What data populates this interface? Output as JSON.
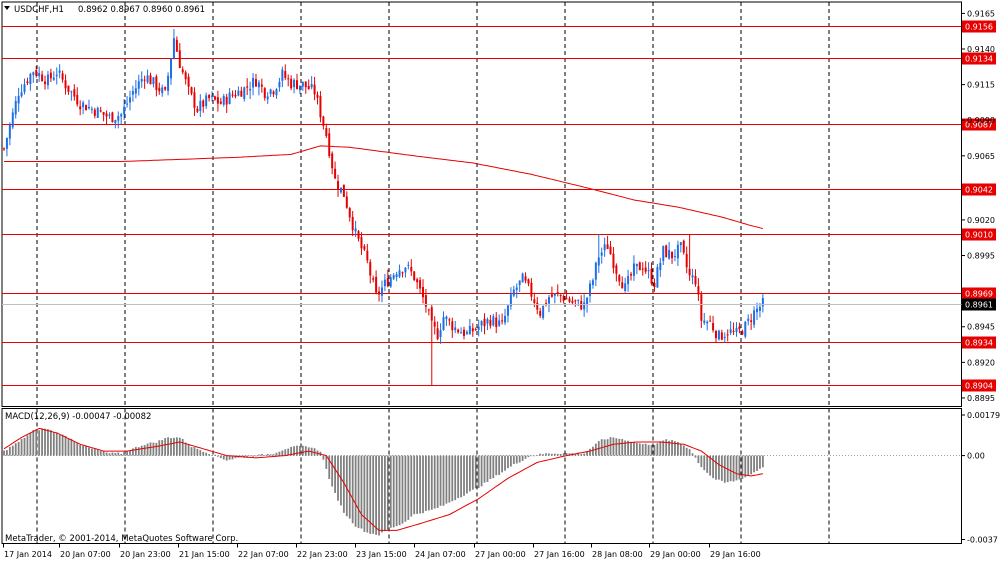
{
  "window": {
    "title": "USDCHF,H1",
    "ohlc": "0.8962 0.8967 0.8960 0.8961",
    "menu_arrow_icon": "triangle-down-icon"
  },
  "colors": {
    "bull": "#1e6fe6",
    "bear": "#e60000",
    "level_line": "#e60000",
    "ma_line": "#e60000",
    "macd_hist": "#808080",
    "macd_signal": "#e60000",
    "grid": "#000000",
    "current_price_line": "#c0c0c0",
    "current_price_box": "#000000"
  },
  "copyright": "MetaTrader, © 2001-2014, MetaQuotes Software Corp.",
  "price_axis": {
    "ticks": [
      "0.9165",
      "0.9140",
      "0.9115",
      "0.9090",
      "0.9065",
      "0.9020",
      "0.8995",
      "0.8945",
      "0.8920",
      "0.8895"
    ]
  },
  "levels": [
    {
      "label": "0.9156",
      "value": 0.9156
    },
    {
      "label": "0.9134",
      "value": 0.9134
    },
    {
      "label": "0.9087",
      "value": 0.9087
    },
    {
      "label": "0.9042",
      "value": 0.9042
    },
    {
      "label": "0.9010",
      "value": 0.901
    },
    {
      "label": "0.8969",
      "value": 0.8969
    },
    {
      "label": "0.8934",
      "value": 0.8934
    },
    {
      "label": "0.8904",
      "value": 0.8904
    }
  ],
  "current_price": {
    "label": "0.8961",
    "value": 0.8961
  },
  "time_axis": {
    "labels": [
      "17 Jan 2014",
      "20 Jan 07:00",
      "20 Jan 23:00",
      "21 Jan 15:00",
      "22 Jan 07:00",
      "22 Jan 23:00",
      "23 Jan 15:00",
      "24 Jan 07:00",
      "27 Jan 00:00",
      "27 Jan 16:00",
      "28 Jan 08:00",
      "29 Jan 00:00",
      "29 Jan 16:00"
    ]
  },
  "macd": {
    "title": "MACD(12,26,9) -0.00047 -0.00082",
    "ticks": [
      "0.00179",
      "0.00",
      "-0.0037"
    ]
  },
  "chart_data": {
    "type": "candlestick",
    "symbol": "USDCHF",
    "timeframe": "H1",
    "ylim": [
      0.8889,
      0.9173
    ],
    "close_path": [
      [
        0,
        0.907
      ],
      [
        5,
        0.911
      ],
      [
        10,
        0.9125
      ],
      [
        15,
        0.9118
      ],
      [
        18,
        0.9124
      ],
      [
        22,
        0.9112
      ],
      [
        26,
        0.9102
      ],
      [
        30,
        0.9098
      ],
      [
        36,
        0.9092
      ],
      [
        40,
        0.9094
      ],
      [
        44,
        0.911
      ],
      [
        48,
        0.9122
      ],
      [
        52,
        0.9114
      ],
      [
        55,
        0.9108
      ],
      [
        58,
        0.9148
      ],
      [
        60,
        0.913
      ],
      [
        63,
        0.911
      ],
      [
        66,
        0.9098
      ],
      [
        70,
        0.9105
      ],
      [
        74,
        0.9102
      ],
      [
        78,
        0.9108
      ],
      [
        82,
        0.9112
      ],
      [
        86,
        0.9118
      ],
      [
        89,
        0.911
      ],
      [
        92,
        0.9112
      ],
      [
        95,
        0.9122
      ],
      [
        98,
        0.9116
      ],
      [
        102,
        0.9115
      ],
      [
        106,
        0.911
      ],
      [
        110,
        0.908
      ],
      [
        113,
        0.9048
      ],
      [
        116,
        0.9038
      ],
      [
        120,
        0.901
      ],
      [
        124,
        0.899
      ],
      [
        127,
        0.8966
      ],
      [
        130,
        0.8975
      ],
      [
        134,
        0.8985
      ],
      [
        137,
        0.8988
      ],
      [
        140,
        0.898
      ],
      [
        144,
        0.896
      ],
      [
        146,
        0.8945
      ],
      [
        148,
        0.894
      ],
      [
        150,
        0.8952
      ],
      [
        154,
        0.8944
      ],
      [
        158,
        0.894
      ],
      [
        162,
        0.8945
      ],
      [
        166,
        0.895
      ],
      [
        170,
        0.8946
      ],
      [
        174,
        0.897
      ],
      [
        177,
        0.8978
      ],
      [
        180,
        0.8968
      ],
      [
        183,
        0.8955
      ],
      [
        186,
        0.8966
      ],
      [
        190,
        0.8967
      ],
      [
        194,
        0.8962
      ],
      [
        198,
        0.896
      ],
      [
        201,
        0.8978
      ],
      [
        203,
        0.8995
      ],
      [
        206,
        0.9002
      ],
      [
        209,
        0.8985
      ],
      [
        212,
        0.8972
      ],
      [
        215,
        0.8985
      ],
      [
        218,
        0.8988
      ],
      [
        222,
        0.8976
      ],
      [
        225,
        0.8998
      ],
      [
        228,
        0.8995
      ],
      [
        231,
        0.9
      ],
      [
        234,
        0.898
      ],
      [
        236,
        0.8978
      ],
      [
        238,
        0.895
      ],
      [
        241,
        0.8948
      ],
      [
        244,
        0.8938
      ],
      [
        247,
        0.8942
      ],
      [
        250,
        0.894
      ],
      [
        253,
        0.8945
      ],
      [
        256,
        0.8955
      ],
      [
        259,
        0.8961
      ]
    ],
    "volatile_spikes": [
      {
        "bar": 58,
        "high": 0.9154
      },
      {
        "bar": 146,
        "low": 0.8904
      },
      {
        "bar": 203,
        "high": 0.901
      },
      {
        "bar": 234,
        "high": 0.901
      }
    ],
    "moving_average": [
      [
        0,
        0.9061
      ],
      [
        40,
        0.9061
      ],
      [
        80,
        0.9064
      ],
      [
        98,
        0.9066
      ],
      [
        108,
        0.9072
      ],
      [
        118,
        0.9071
      ],
      [
        140,
        0.9065
      ],
      [
        160,
        0.906
      ],
      [
        180,
        0.9052
      ],
      [
        200,
        0.9042
      ],
      [
        215,
        0.9034
      ],
      [
        230,
        0.9029
      ],
      [
        245,
        0.9022
      ],
      [
        255,
        0.9016
      ],
      [
        259,
        0.9014
      ]
    ],
    "macd_hist": [
      [
        0,
        0.0002
      ],
      [
        5,
        0.0006
      ],
      [
        10,
        0.0011
      ],
      [
        14,
        0.0012
      ],
      [
        18,
        0.001
      ],
      [
        22,
        0.0008
      ],
      [
        26,
        0.0005
      ],
      [
        30,
        0.0003
      ],
      [
        36,
        0.0001
      ],
      [
        40,
        0.0001
      ],
      [
        44,
        0.0003
      ],
      [
        48,
        0.0005
      ],
      [
        52,
        0.0006
      ],
      [
        56,
        0.0008
      ],
      [
        60,
        0.0008
      ],
      [
        64,
        0.0004
      ],
      [
        70,
        0.0001
      ],
      [
        76,
        -0.0002
      ],
      [
        80,
        -0.0001
      ],
      [
        86,
        0.0
      ],
      [
        92,
        0.0001
      ],
      [
        96,
        0.0003
      ],
      [
        100,
        0.0004
      ],
      [
        104,
        0.0004
      ],
      [
        108,
        0.0002
      ],
      [
        112,
        -0.0014
      ],
      [
        116,
        -0.0025
      ],
      [
        120,
        -0.0031
      ],
      [
        124,
        -0.0034
      ],
      [
        128,
        -0.0035
      ],
      [
        132,
        -0.0032
      ],
      [
        136,
        -0.003
      ],
      [
        140,
        -0.0026
      ],
      [
        146,
        -0.0024
      ],
      [
        150,
        -0.0022
      ],
      [
        156,
        -0.0018
      ],
      [
        162,
        -0.0014
      ],
      [
        168,
        -0.0009
      ],
      [
        174,
        -0.0004
      ],
      [
        180,
        0.0
      ],
      [
        186,
        0.0001
      ],
      [
        192,
        0.0001
      ],
      [
        198,
        0.0001
      ],
      [
        204,
        0.0007
      ],
      [
        208,
        0.0008
      ],
      [
        212,
        0.0007
      ],
      [
        218,
        0.0005
      ],
      [
        222,
        0.0005
      ],
      [
        226,
        0.0007
      ],
      [
        230,
        0.0006
      ],
      [
        234,
        0.0003
      ],
      [
        238,
        -0.0005
      ],
      [
        242,
        -0.001
      ],
      [
        246,
        -0.0012
      ],
      [
        250,
        -0.0011
      ],
      [
        254,
        -0.0009
      ],
      [
        259,
        -0.0005
      ]
    ],
    "macd_signal": [
      [
        0,
        0.0003
      ],
      [
        6,
        0.0008
      ],
      [
        12,
        0.0012
      ],
      [
        18,
        0.001
      ],
      [
        26,
        0.0005
      ],
      [
        34,
        0.0002
      ],
      [
        42,
        0.0002
      ],
      [
        52,
        0.0004
      ],
      [
        60,
        0.0006
      ],
      [
        68,
        0.0003
      ],
      [
        76,
        0.0
      ],
      [
        86,
        -0.0001
      ],
      [
        96,
        0.0
      ],
      [
        104,
        0.0002
      ],
      [
        110,
        0.0
      ],
      [
        116,
        -0.0012
      ],
      [
        122,
        -0.0026
      ],
      [
        128,
        -0.0033
      ],
      [
        134,
        -0.0033
      ],
      [
        142,
        -0.003
      ],
      [
        152,
        -0.0026
      ],
      [
        162,
        -0.0019
      ],
      [
        172,
        -0.001
      ],
      [
        182,
        -0.0003
      ],
      [
        192,
        0.0
      ],
      [
        200,
        0.0002
      ],
      [
        208,
        0.0005
      ],
      [
        216,
        0.0006
      ],
      [
        224,
        0.0006
      ],
      [
        232,
        0.0005
      ],
      [
        238,
        0.0002
      ],
      [
        244,
        -0.0004
      ],
      [
        250,
        -0.0008
      ],
      [
        255,
        -0.0009
      ],
      [
        259,
        -0.0008
      ]
    ],
    "macd_ylim": [
      -0.0037,
      0.0019
    ],
    "last_bar_index": 259
  }
}
